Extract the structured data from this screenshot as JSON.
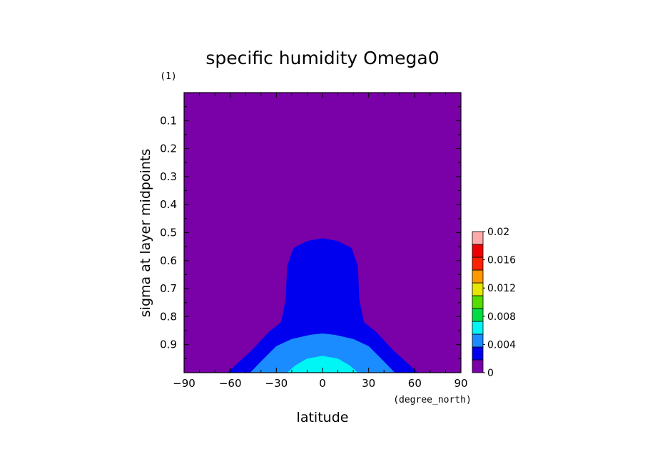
{
  "chart_data": {
    "type": "contour",
    "title": "specific humidity Omega0",
    "xlabel": "latitude",
    "ylabel": "sigma at layer midpoints",
    "x_units": "(degree_north)",
    "y_units": "(1)",
    "xlim": [
      -90,
      90
    ],
    "ylim": [
      1.0,
      0.0
    ],
    "x_ticks": [
      -90,
      -60,
      -30,
      0,
      30,
      60,
      90
    ],
    "x_tick_labels": [
      "−90",
      "−60",
      "−30",
      "0",
      "30",
      "60",
      "90"
    ],
    "y_ticks": [
      0.1,
      0.2,
      0.3,
      0.4,
      0.5,
      0.6,
      0.7,
      0.8,
      0.9
    ],
    "y_tick_labels": [
      "0.1",
      "0.2",
      "0.3",
      "0.4",
      "0.5",
      "0.6",
      "0.7",
      "0.8",
      "0.9"
    ],
    "levels": [
      0,
      0.002,
      0.004,
      0.006,
      0.008,
      0.01,
      0.012,
      0.014,
      0.016,
      0.018,
      0.02
    ],
    "level_colors": [
      "#7a00a8",
      "#0000ee",
      "#1a8cff",
      "#00f5f5",
      "#00dd44",
      "#55dd00",
      "#e6e600",
      "#ff9900",
      "#ff2200",
      "#ee0000",
      "#ffaaaa"
    ],
    "colorbar_labels": [
      "0",
      "0.004",
      "0.008",
      "0.012",
      "0.016",
      "0.02"
    ],
    "contours": [
      {
        "level": 0.002,
        "boundary": [
          [
            -90,
            1.0
          ],
          [
            -62,
            1.0
          ],
          [
            -55,
            0.965
          ],
          [
            -46,
            0.92
          ],
          [
            -35,
            0.855
          ],
          [
            -27,
            0.82
          ],
          [
            -24,
            0.74
          ],
          [
            -23,
            0.62
          ],
          [
            -19,
            0.555
          ],
          [
            -10,
            0.53
          ],
          [
            0,
            0.52
          ],
          [
            10,
            0.53
          ],
          [
            19,
            0.555
          ],
          [
            23,
            0.62
          ],
          [
            24,
            0.74
          ],
          [
            27,
            0.82
          ],
          [
            35,
            0.855
          ],
          [
            46,
            0.92
          ],
          [
            55,
            0.965
          ],
          [
            62,
            1.0
          ],
          [
            90,
            1.0
          ]
        ]
      },
      {
        "level": 0.004,
        "boundary": [
          [
            -47,
            1.0
          ],
          [
            -40,
            0.96
          ],
          [
            -30,
            0.905
          ],
          [
            -20,
            0.88
          ],
          [
            -8,
            0.865
          ],
          [
            0,
            0.86
          ],
          [
            8,
            0.865
          ],
          [
            20,
            0.88
          ],
          [
            30,
            0.905
          ],
          [
            40,
            0.96
          ],
          [
            47,
            1.0
          ]
        ]
      },
      {
        "level": 0.006,
        "boundary": [
          [
            -23,
            1.0
          ],
          [
            -18,
            0.975
          ],
          [
            -10,
            0.95
          ],
          [
            0,
            0.94
          ],
          [
            10,
            0.95
          ],
          [
            18,
            0.975
          ],
          [
            23,
            1.0
          ]
        ]
      }
    ]
  }
}
